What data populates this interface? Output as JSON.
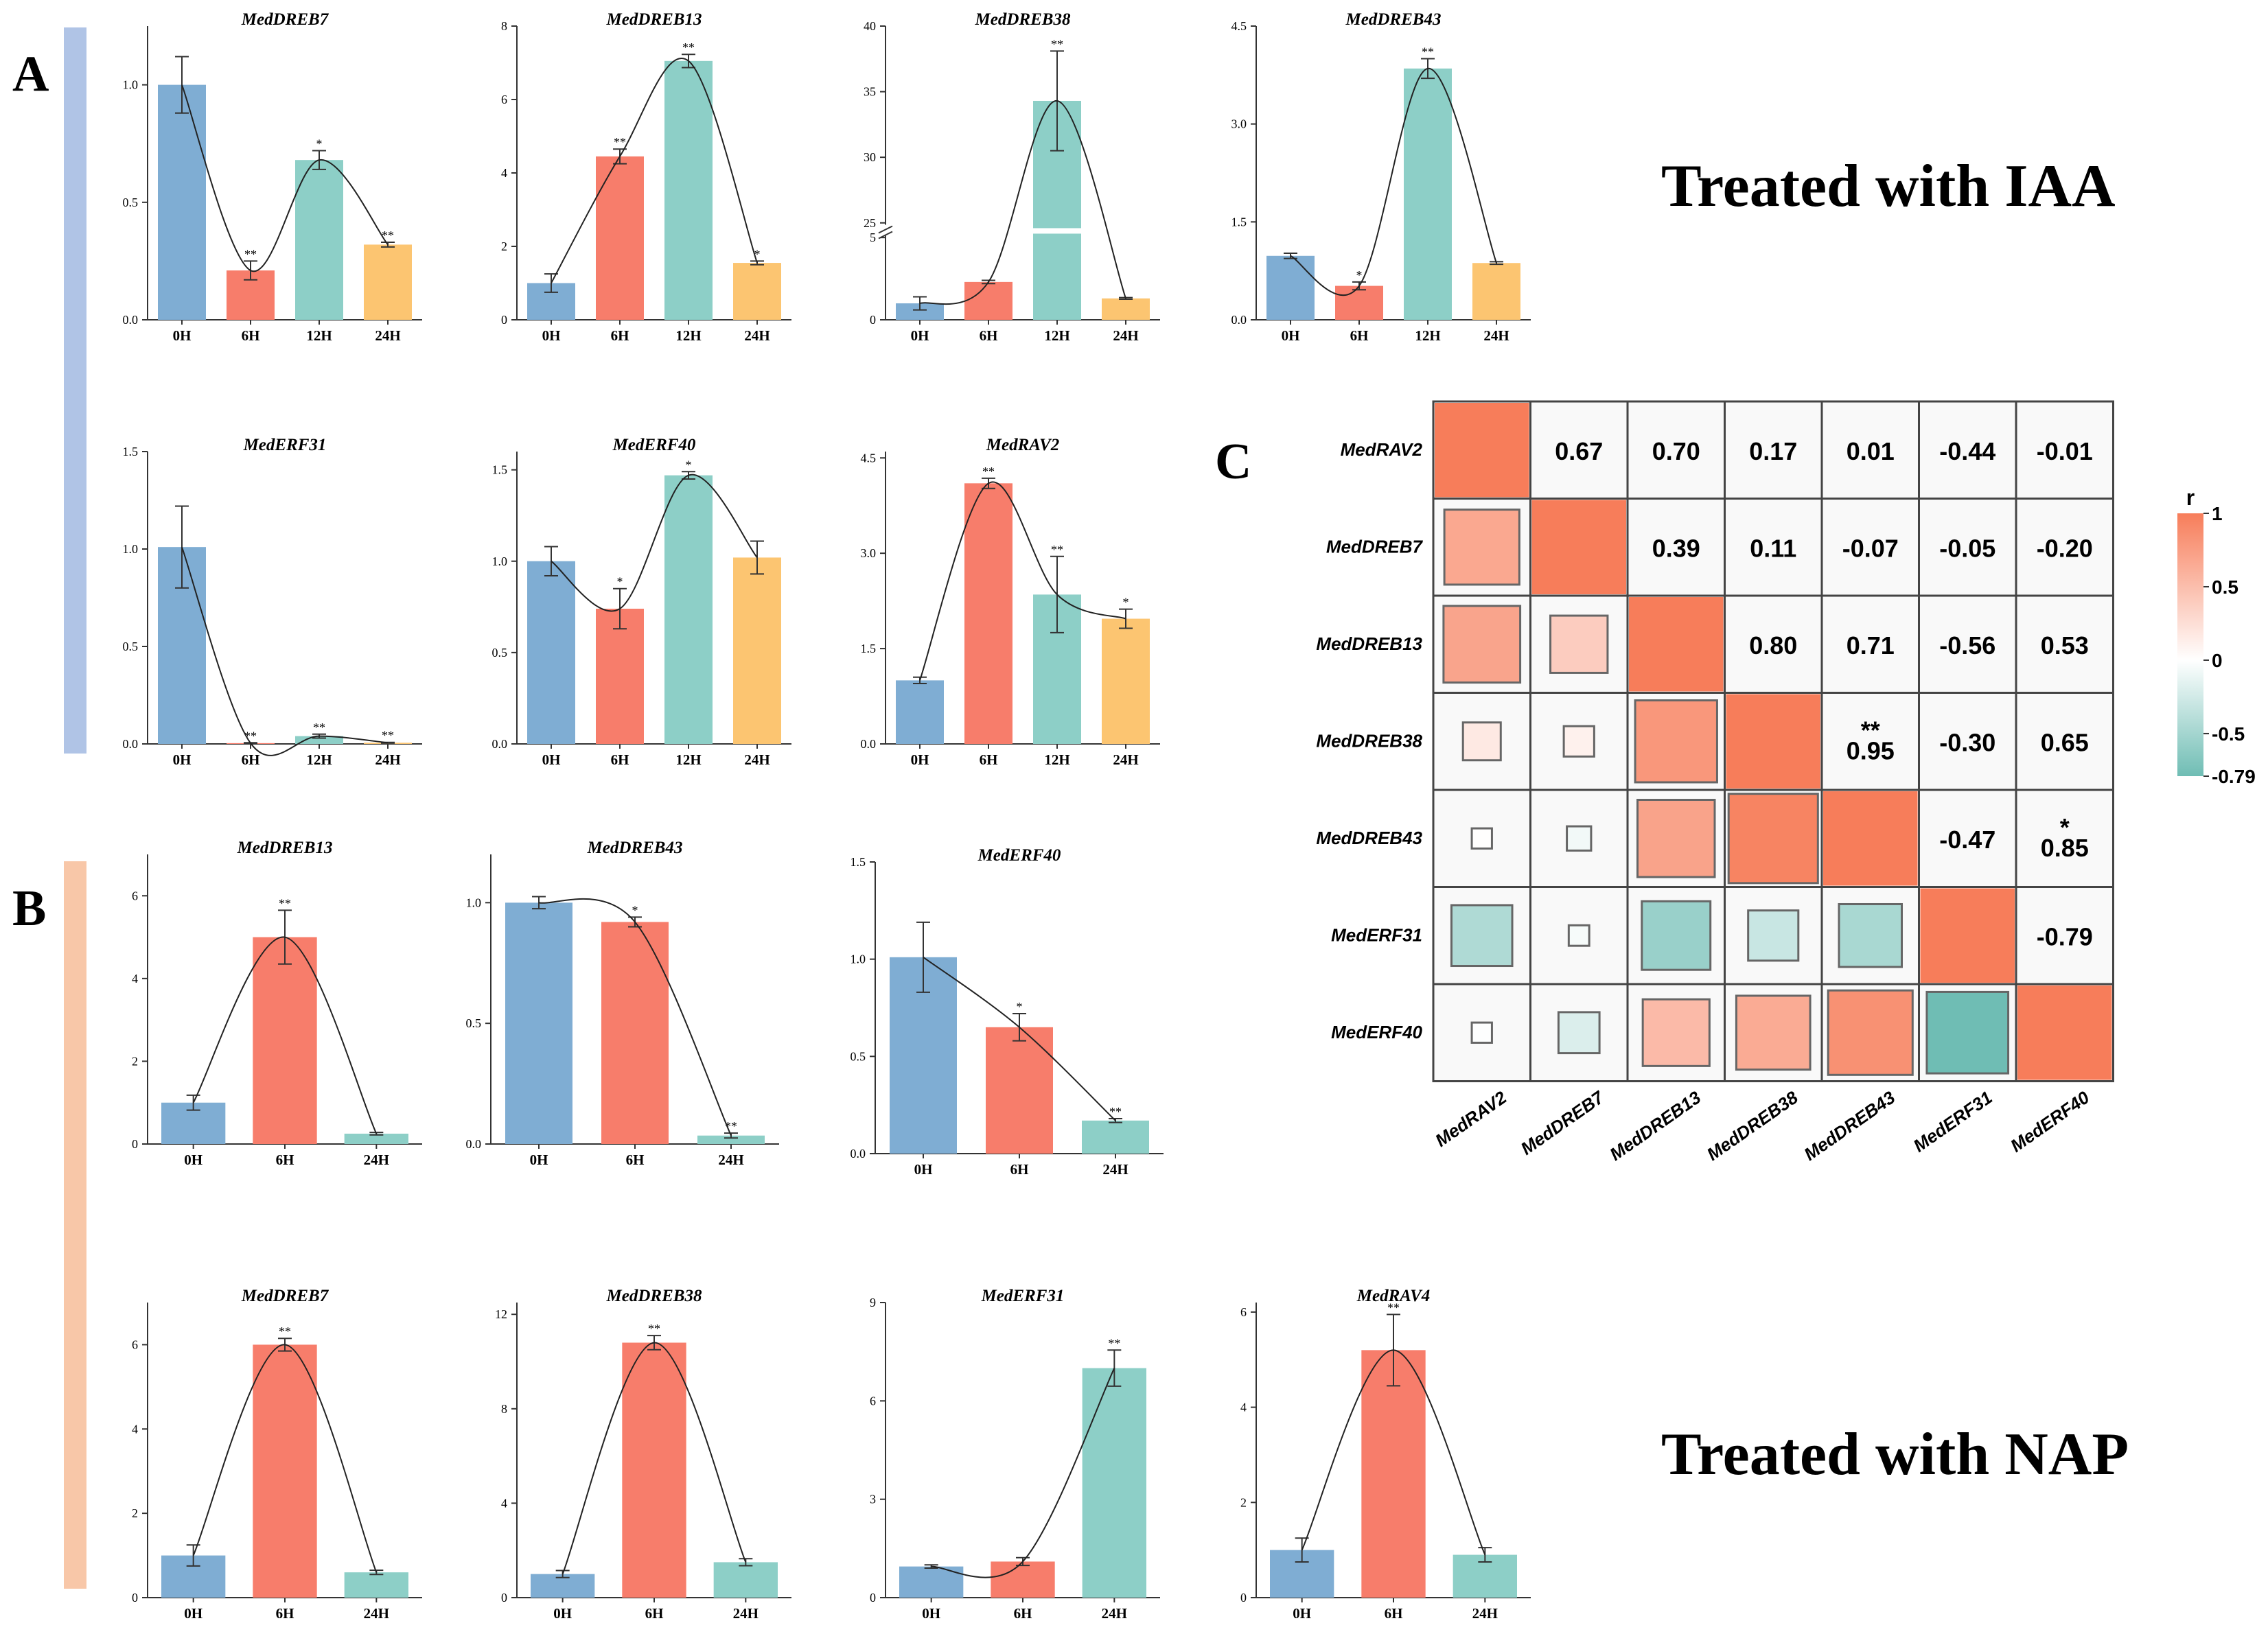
{
  "colors": {
    "blue": "#7fadd3",
    "red": "#f77d6b",
    "teal": "#8dcfc7",
    "orange": "#fcc571",
    "sideA": "#b0c4e6",
    "sideB": "#f8c7a8",
    "heat_pos": "#f77d5a",
    "heat_neg": "#6fbdb4"
  },
  "panels": {
    "A_label": "A",
    "B_label": "B",
    "C_label": "C",
    "iaa_title": "Treated with IAA",
    "nap_title": "Treated with NAP"
  },
  "chart_data": [
    {
      "type": "bar",
      "panel": "A",
      "title": "MedDREB7",
      "categories": [
        "0H",
        "6H",
        "12H",
        "24H"
      ],
      "values": [
        1.0,
        0.21,
        0.68,
        0.32
      ],
      "errors": [
        0.12,
        0.04,
        0.04,
        0.01
      ],
      "sig": [
        "",
        "**",
        "*",
        "**"
      ],
      "ylim": [
        0,
        1.25
      ],
      "ticks": [
        "0.0",
        "0.5",
        "1.0"
      ]
    },
    {
      "type": "bar",
      "panel": "A",
      "title": "MedDREB13",
      "categories": [
        "0H",
        "6H",
        "12H",
        "24H"
      ],
      "values": [
        1.0,
        4.45,
        7.05,
        1.55
      ],
      "errors": [
        0.25,
        0.2,
        0.18,
        0.05
      ],
      "sig": [
        "",
        "**",
        "**",
        "*"
      ],
      "ylim": [
        0,
        8
      ],
      "ticks": [
        "0",
        "2",
        "4",
        "6",
        "8"
      ]
    },
    {
      "type": "bar",
      "panel": "A",
      "title": "MedDREB38",
      "categories": [
        "0H",
        "6H",
        "12H",
        "24H"
      ],
      "values": [
        1.0,
        2.3,
        34.3,
        1.3
      ],
      "errors": [
        0.4,
        0.1,
        3.8,
        0.05
      ],
      "sig": [
        "",
        "",
        "**",
        ""
      ],
      "ylim": [
        0,
        40
      ],
      "broken_axis": [
        5,
        25
      ],
      "ticks": [
        "0",
        "5",
        "25",
        "30",
        "35",
        "40"
      ]
    },
    {
      "type": "bar",
      "panel": "A",
      "title": "MedDREB43",
      "categories": [
        "0H",
        "6H",
        "12H",
        "24H"
      ],
      "values": [
        0.98,
        0.52,
        3.85,
        0.87
      ],
      "errors": [
        0.04,
        0.06,
        0.15,
        0.02
      ],
      "sig": [
        "",
        "*",
        "**",
        ""
      ],
      "ylim": [
        0,
        4.5
      ],
      "ticks": [
        "0.0",
        "1.5",
        "3.0",
        "4.5"
      ]
    },
    {
      "type": "bar",
      "panel": "A",
      "title": "MedERF31",
      "categories": [
        "0H",
        "6H",
        "12H",
        "24H"
      ],
      "values": [
        1.01,
        0.004,
        0.04,
        0.006
      ],
      "errors": [
        0.21,
        0.002,
        0.01,
        0.002
      ],
      "sig": [
        "",
        "**",
        "**",
        "**"
      ],
      "ylim": [
        0,
        1.5
      ],
      "ticks": [
        "0.0",
        "0.5",
        "1.0",
        "1.5"
      ]
    },
    {
      "type": "bar",
      "panel": "A",
      "title": "MedERF40",
      "categories": [
        "0H",
        "6H",
        "12H",
        "24H"
      ],
      "values": [
        1.0,
        0.74,
        1.47,
        1.02
      ],
      "errors": [
        0.08,
        0.11,
        0.02,
        0.09
      ],
      "sig": [
        "",
        "*",
        "*",
        ""
      ],
      "ylim": [
        0,
        1.6
      ],
      "ticks": [
        "0.0",
        "0.5",
        "1.0",
        "1.5"
      ]
    },
    {
      "type": "bar",
      "panel": "A",
      "title": "MedRAV2",
      "categories": [
        "0H",
        "6H",
        "12H",
        "24H"
      ],
      "values": [
        1.0,
        4.1,
        2.35,
        1.97
      ],
      "errors": [
        0.05,
        0.08,
        0.6,
        0.15
      ],
      "sig": [
        "",
        "**",
        "**",
        "*"
      ],
      "ylim": [
        0,
        4.6
      ],
      "ticks": [
        "0.0",
        "1.5",
        "3.0",
        "4.5"
      ]
    },
    {
      "type": "bar",
      "panel": "B",
      "title": "MedDREB13",
      "categories": [
        "0H",
        "6H",
        "24H"
      ],
      "values": [
        1.0,
        5.0,
        0.25
      ],
      "errors": [
        0.18,
        0.65,
        0.03
      ],
      "sig": [
        "",
        "**",
        ""
      ],
      "ylim": [
        0,
        7
      ],
      "ticks": [
        "0",
        "2",
        "4",
        "6"
      ]
    },
    {
      "type": "bar",
      "panel": "B",
      "title": "MedDREB43",
      "categories": [
        "0H",
        "6H",
        "24H"
      ],
      "values": [
        1.0,
        0.92,
        0.035
      ],
      "errors": [
        0.025,
        0.02,
        0.01
      ],
      "sig": [
        "",
        "*",
        "**"
      ],
      "ylim": [
        0,
        1.2
      ],
      "ticks": [
        "0.0",
        "0.5",
        "1.0"
      ]
    },
    {
      "type": "bar",
      "panel": "B",
      "title": "MedERF40",
      "categories": [
        "0H",
        "6H",
        "24H"
      ],
      "values": [
        1.01,
        0.65,
        0.17
      ],
      "errors": [
        0.18,
        0.07,
        0.01
      ],
      "sig": [
        "",
        "*",
        "**"
      ],
      "ylim": [
        0,
        1.5
      ],
      "ticks": [
        "0.0",
        "0.5",
        "1.0",
        "1.5"
      ]
    },
    {
      "type": "bar",
      "panel": "B",
      "title": "MedDREB7",
      "categories": [
        "0H",
        "6H",
        "24H"
      ],
      "values": [
        1.0,
        6.0,
        0.6
      ],
      "errors": [
        0.25,
        0.15,
        0.05
      ],
      "sig": [
        "",
        "**",
        ""
      ],
      "ylim": [
        0,
        7
      ],
      "ticks": [
        "0",
        "2",
        "4",
        "6"
      ]
    },
    {
      "type": "bar",
      "panel": "B",
      "title": "MedDREB38",
      "categories": [
        "0H",
        "6H",
        "24H"
      ],
      "values": [
        1.0,
        10.8,
        1.5
      ],
      "errors": [
        0.15,
        0.3,
        0.15
      ],
      "sig": [
        "",
        "**",
        ""
      ],
      "ylim": [
        0,
        12.5
      ],
      "ticks": [
        "0",
        "4",
        "8",
        "12"
      ]
    },
    {
      "type": "bar",
      "panel": "B",
      "title": "MedERF31",
      "categories": [
        "0H",
        "6H",
        "24H"
      ],
      "values": [
        0.95,
        1.1,
        7.0
      ],
      "errors": [
        0.05,
        0.12,
        0.55
      ],
      "sig": [
        "",
        "",
        "**"
      ],
      "ylim": [
        0,
        9
      ],
      "ticks": [
        "0",
        "3",
        "6",
        "9"
      ]
    },
    {
      "type": "bar",
      "panel": "B",
      "title": "MedRAV4",
      "categories": [
        "0H",
        "6H",
        "24H"
      ],
      "values": [
        1.0,
        5.2,
        0.9
      ],
      "errors": [
        0.25,
        0.75,
        0.15
      ],
      "sig": [
        "",
        "**",
        ""
      ],
      "ylim": [
        0,
        6.2
      ],
      "ticks": [
        "0",
        "2",
        "4",
        "6"
      ]
    },
    {
      "type": "heatmap",
      "panel": "C",
      "labels": [
        "MedRAV2",
        "MedDREB7",
        "MedDREB13",
        "MedDREB38",
        "MedDREB43",
        "MedERF31",
        "MedERF40"
      ],
      "matrix": [
        [
          1,
          0.67,
          0.7,
          0.17,
          0.01,
          -0.44,
          -0.01
        ],
        [
          0.67,
          1,
          0.39,
          0.11,
          -0.07,
          -0.05,
          -0.2
        ],
        [
          0.7,
          0.39,
          1,
          0.8,
          0.71,
          -0.56,
          0.53
        ],
        [
          0.17,
          0.11,
          0.8,
          1,
          0.95,
          -0.3,
          0.65
        ],
        [
          0.01,
          -0.07,
          0.71,
          0.95,
          1,
          -0.47,
          0.85
        ],
        [
          -0.44,
          -0.05,
          -0.56,
          -0.3,
          -0.47,
          1,
          -0.79
        ],
        [
          -0.01,
          -0.2,
          0.53,
          0.65,
          0.85,
          -0.79,
          1
        ]
      ],
      "upper_text": [
        [
          "",
          "0.67",
          "0.70",
          "0.17",
          "0.01",
          "-0.44",
          "-0.01"
        ],
        [
          "",
          "",
          "0.39",
          "0.11",
          "-0.07",
          "-0.05",
          "-0.20"
        ],
        [
          "",
          "",
          "",
          "0.80",
          "0.71",
          "-0.56",
          "0.53"
        ],
        [
          "",
          "",
          "",
          "",
          "0.95",
          "-0.30",
          "0.65"
        ],
        [
          "",
          "",
          "",
          "",
          "",
          "-0.47",
          "0.85"
        ],
        [
          "",
          "",
          "",
          "",
          "",
          "",
          "-0.79"
        ],
        [
          "",
          "",
          "",
          "",
          "",
          "",
          ""
        ]
      ],
      "upper_sig": [
        [
          "",
          "",
          "",
          "",
          "",
          "",
          ""
        ],
        [
          "",
          "",
          "",
          "",
          "",
          "",
          ""
        ],
        [
          "",
          "",
          "",
          "",
          "",
          "",
          ""
        ],
        [
          "",
          "",
          "",
          "",
          "**",
          "",
          ""
        ],
        [
          "",
          "",
          "",
          "",
          "",
          "",
          "*"
        ],
        [
          "",
          "",
          "",
          "",
          "",
          "",
          ""
        ],
        [
          "",
          "",
          "",
          "",
          "",
          "",
          ""
        ]
      ],
      "legend_title": "r",
      "legend_ticks": [
        "1",
        "0.5",
        "0",
        "-0.5",
        "-0.79"
      ],
      "range": [
        -0.79,
        1
      ]
    }
  ]
}
